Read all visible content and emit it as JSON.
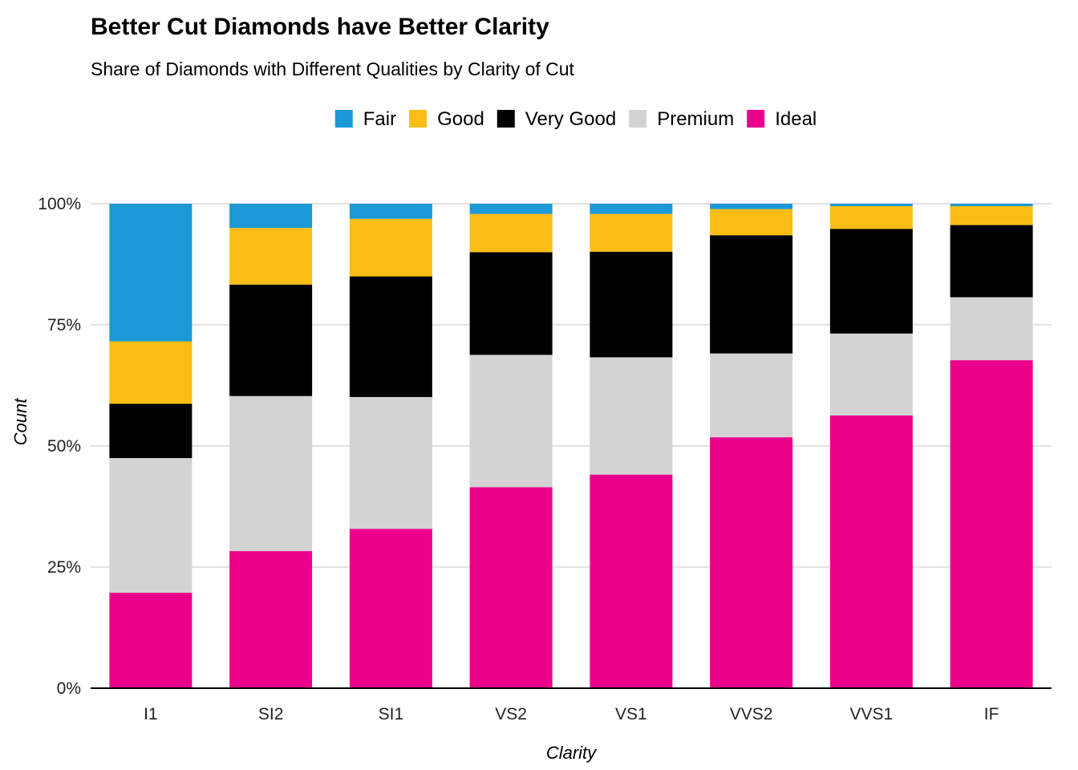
{
  "chart_data": {
    "type": "bar",
    "stacked": true,
    "normalized": true,
    "title": "Better Cut Diamonds have Better Clarity",
    "subtitle": "Share of Diamonds with Different Qualities by Clarity of Cut",
    "xlabel": "Clarity",
    "ylabel": "Count",
    "ylim": [
      0,
      100
    ],
    "yticks": [
      "0%",
      "25%",
      "50%",
      "75%",
      "100%"
    ],
    "ytick_values": [
      0,
      25,
      50,
      75,
      100
    ],
    "grid": true,
    "legend_position": "top",
    "categories": [
      "I1",
      "SI2",
      "SI1",
      "VS2",
      "VS1",
      "VVS2",
      "VVS1",
      "IF"
    ],
    "series": [
      {
        "name": "Fair",
        "color": "#1B98D6",
        "values": [
          28.4,
          5.0,
          3.1,
          2.1,
          2.1,
          1.1,
          0.5,
          0.5
        ]
      },
      {
        "name": "Good",
        "color": "#FBBD14",
        "values": [
          12.9,
          11.7,
          11.9,
          7.9,
          7.8,
          5.4,
          4.7,
          3.9
        ]
      },
      {
        "name": "Very Good",
        "color": "#000000",
        "values": [
          11.2,
          23.0,
          24.9,
          21.2,
          21.8,
          24.4,
          21.6,
          14.9
        ]
      },
      {
        "name": "Premium",
        "color": "#D3D3D3",
        "values": [
          27.8,
          32.0,
          27.2,
          27.3,
          24.2,
          17.3,
          16.9,
          13.0
        ]
      },
      {
        "name": "Ideal",
        "color": "#EA008B",
        "values": [
          19.7,
          28.3,
          32.9,
          41.5,
          44.1,
          51.8,
          56.3,
          67.7
        ]
      }
    ]
  }
}
